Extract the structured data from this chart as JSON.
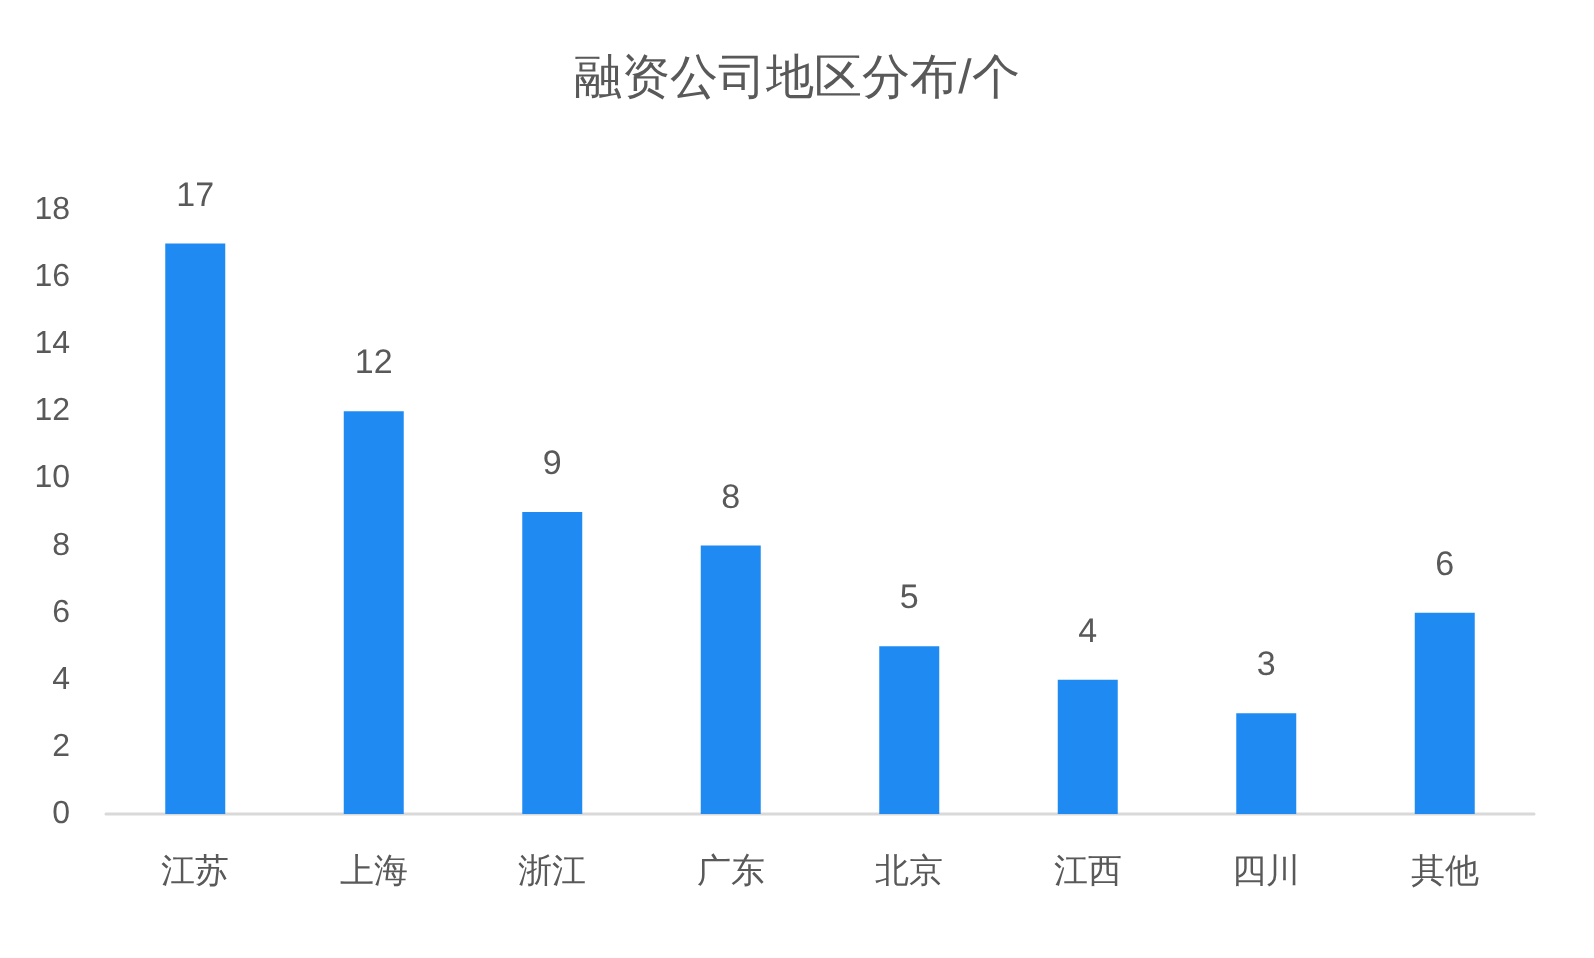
{
  "chart_data": {
    "type": "bar",
    "title": "融资公司地区分布/个",
    "categories": [
      "江苏",
      "上海",
      "浙江",
      "广东",
      "北京",
      "江西",
      "四川",
      "其他"
    ],
    "values": [
      17,
      12,
      9,
      8,
      5,
      4,
      3,
      6
    ],
    "color": "#1f8bf2",
    "ylim": [
      0,
      18
    ],
    "yticks": [
      0,
      2,
      4,
      6,
      8,
      10,
      12,
      14,
      16,
      18
    ],
    "grid": false,
    "data_labels": true
  }
}
